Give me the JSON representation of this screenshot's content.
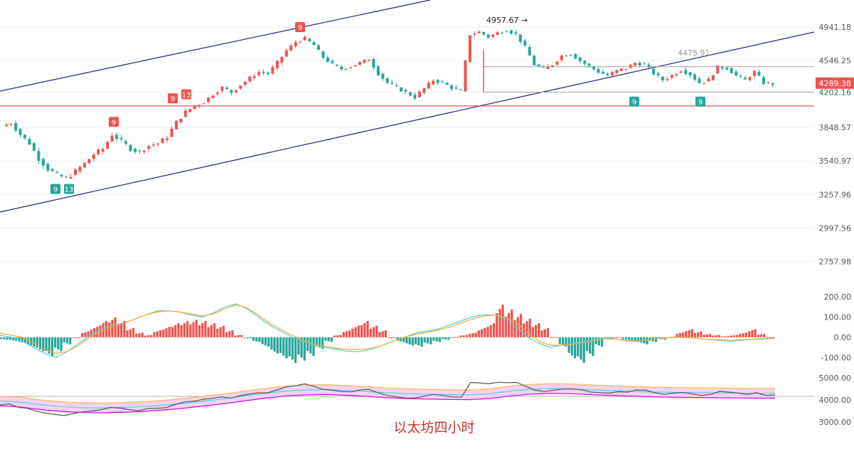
{
  "chart_data": {
    "type": "candlestick",
    "title": "",
    "caption": "以太坊四小时",
    "colors": {
      "up": "#ef5350",
      "down": "#26a69a",
      "channel": "#1a237e",
      "support": "#d32f2f",
      "macd": "#4dd0e1",
      "signal": "#ffa726",
      "band_fill": "#f3d3f3",
      "band_upper": "#ffb74d",
      "band_lower": "#d500f9"
    },
    "price_axis": {
      "ticks": [
        "4941.18",
        "4546.25",
        "4202.16",
        "3848.57",
        "3540.97",
        "3257.96",
        "2997.56",
        "2757.98"
      ],
      "last_price": "4289.38",
      "scale": "log"
    },
    "annotations": {
      "high_label": "4957.67",
      "level_label": "4475.91",
      "td_marks": [
        {
          "text": "9",
          "price": 3380,
          "dir": "down"
        },
        {
          "text": "13",
          "price": 3380,
          "dir": "down"
        },
        {
          "text": "9",
          "price": 3800,
          "dir": "up"
        },
        {
          "text": "9",
          "price": 4030,
          "dir": "up"
        },
        {
          "text": "13",
          "price": 4070,
          "dir": "up"
        },
        {
          "text": "9",
          "price": 4810,
          "dir": "up"
        },
        {
          "text": "9",
          "price": 4200,
          "dir": "down"
        },
        {
          "text": "9",
          "price": 4200,
          "dir": "down"
        }
      ],
      "support_price": 4060,
      "range_top": 4475.91,
      "range_bottom": 4202.16
    },
    "close_path": [
      3860,
      3890,
      3780,
      3700,
      3560,
      3470,
      3420,
      3390,
      3450,
      3520,
      3600,
      3650,
      3780,
      3720,
      3650,
      3620,
      3680,
      3700,
      3760,
      3900,
      4000,
      4060,
      4100,
      4180,
      4250,
      4200,
      4280,
      4350,
      4420,
      4400,
      4520,
      4660,
      4760,
      4800,
      4720,
      4580,
      4500,
      4450,
      4480,
      4520,
      4560,
      4400,
      4300,
      4250,
      4200,
      4150,
      4240,
      4330,
      4300,
      4250,
      4210,
      4850,
      4880,
      4820,
      4870,
      4900,
      4850,
      4700,
      4500,
      4450,
      4500,
      4600,
      4620,
      4540,
      4480,
      4420,
      4380,
      4430,
      4460,
      4520,
      4500,
      4400,
      4330,
      4380,
      4440,
      4390,
      4300,
      4330,
      4470,
      4460,
      4380,
      4330,
      4420,
      4300,
      4289
    ],
    "macd_axis": {
      "ticks": [
        "200.00",
        "100.00",
        "0.00",
        "-100.00"
      ]
    },
    "macd_hist": [
      -10,
      -15,
      -25,
      -40,
      -60,
      -80,
      -60,
      -30,
      0,
      25,
      45,
      70,
      85,
      70,
      40,
      20,
      10,
      30,
      45,
      60,
      70,
      75,
      70,
      60,
      50,
      30,
      10,
      -5,
      -20,
      -40,
      -70,
      -90,
      -110,
      -100,
      -80,
      -50,
      -20,
      10,
      30,
      50,
      70,
      50,
      30,
      0,
      -20,
      -35,
      -40,
      -30,
      -20,
      -10,
      0,
      10,
      20,
      40,
      60,
      140,
      120,
      100,
      80,
      60,
      40,
      0,
      -40,
      -90,
      -110,
      -80,
      -40,
      -10,
      0,
      -10,
      -20,
      -30,
      -20,
      -10,
      0,
      20,
      35,
      25,
      15,
      10,
      5,
      10,
      20,
      35,
      15,
      0
    ],
    "macd_line": [
      10,
      0,
      -20,
      -50,
      -80,
      -100,
      -70,
      -30,
      10,
      40,
      60,
      70,
      90,
      110,
      130,
      130,
      125,
      110,
      100,
      120,
      150,
      165,
      140,
      100,
      60,
      30,
      0,
      -20,
      -40,
      -50,
      -60,
      -70,
      -70,
      -60,
      -40,
      -20,
      0,
      20,
      30,
      40,
      60,
      80,
      100,
      110,
      110,
      90,
      50,
      0,
      -30,
      -50,
      -40,
      -30,
      -20,
      -10,
      0,
      -10,
      -20,
      -20,
      -10,
      -5,
      0,
      0,
      -5,
      -10,
      -15,
      -20,
      -15,
      -10,
      -5,
      -5
    ],
    "signal_line": [
      20,
      10,
      0,
      -30,
      -60,
      -80,
      -70,
      -40,
      0,
      30,
      50,
      70,
      90,
      110,
      125,
      130,
      125,
      115,
      105,
      115,
      140,
      160,
      145,
      110,
      70,
      40,
      10,
      -15,
      -35,
      -45,
      -55,
      -60,
      -60,
      -55,
      -40,
      -20,
      0,
      15,
      25,
      35,
      50,
      70,
      90,
      105,
      110,
      100,
      70,
      20,
      -20,
      -40,
      -40,
      -35,
      -25,
      -15,
      -5,
      -10,
      -15,
      -15,
      -10,
      -5,
      0,
      0,
      -5,
      -10,
      -12,
      -15,
      -12,
      -10,
      -8,
      -6
    ],
    "band_axis": {
      "ticks": [
        "5000.00",
        "4000.00",
        "3000.00"
      ]
    },
    "band_mid": [
      3950,
      3900,
      3780,
      3700,
      3650,
      3640,
      3660,
      3700,
      3760,
      3840,
      3950,
      4050,
      4180,
      4300,
      4400,
      4450,
      4470,
      4430,
      4380,
      4320,
      4280,
      4260,
      4240,
      4230,
      4280,
      4400,
      4480,
      4520,
      4500,
      4460,
      4420,
      4390,
      4360,
      4340,
      4330,
      4320,
      4310,
      4300,
      4300
    ]
  }
}
